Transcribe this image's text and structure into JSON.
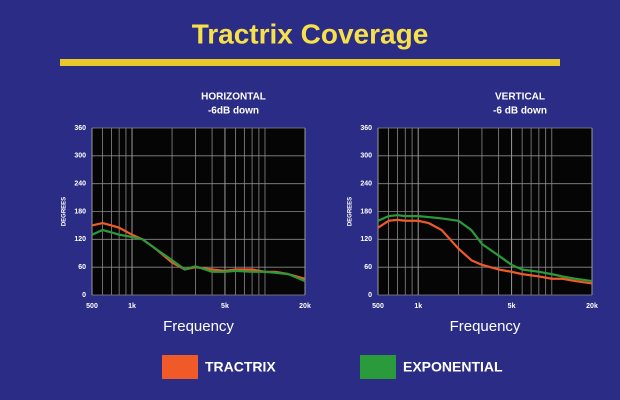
{
  "title": "Tractrix Coverage",
  "chart_data": [
    {
      "type": "line",
      "title": "HORIZONTAL",
      "subtitle": "-6dB down",
      "ylabel": "DEGREES",
      "xlabel": "Frequency",
      "xscale": "log",
      "xlim": [
        500,
        20000
      ],
      "xticks": [
        {
          "value": 500,
          "label": "500"
        },
        {
          "value": 1000,
          "label": "1k"
        },
        {
          "value": 5000,
          "label": "5k"
        },
        {
          "value": 20000,
          "label": "20k"
        }
      ],
      "xminor": [
        600,
        700,
        800,
        900,
        2000,
        3000,
        4000,
        6000,
        7000,
        8000,
        9000,
        10000
      ],
      "ylim": [
        0,
        360
      ],
      "yticks": [
        0,
        60,
        120,
        180,
        240,
        300,
        360
      ],
      "grid": true,
      "x": [
        500,
        600,
        700,
        800,
        1000,
        1200,
        1500,
        2000,
        2500,
        3000,
        4000,
        5000,
        6000,
        8000,
        10000,
        12000,
        15000,
        20000
      ],
      "series": [
        {
          "name": "TRACTRIX",
          "color": "#f05a28",
          "values": [
            150,
            155,
            150,
            145,
            130,
            120,
            100,
            70,
            55,
            60,
            55,
            52,
            55,
            55,
            50,
            50,
            45,
            35
          ]
        },
        {
          "name": "EXPONENTIAL",
          "color": "#2a9a3a",
          "values": [
            130,
            140,
            135,
            130,
            125,
            120,
            100,
            75,
            55,
            62,
            50,
            50,
            52,
            50,
            50,
            48,
            45,
            30
          ]
        }
      ]
    },
    {
      "type": "line",
      "title": "VERTICAL",
      "subtitle": "-6 dB down",
      "ylabel": "DEGREES",
      "xlabel": "Frequency",
      "xscale": "log",
      "xlim": [
        500,
        20000
      ],
      "xticks": [
        {
          "value": 500,
          "label": "500"
        },
        {
          "value": 1000,
          "label": "1k"
        },
        {
          "value": 5000,
          "label": "5k"
        },
        {
          "value": 20000,
          "label": "20k"
        }
      ],
      "xminor": [
        600,
        700,
        800,
        900,
        2000,
        3000,
        4000,
        6000,
        7000,
        8000,
        9000,
        10000
      ],
      "ylim": [
        0,
        360
      ],
      "yticks": [
        0,
        60,
        120,
        180,
        240,
        300,
        360
      ],
      "grid": true,
      "x": [
        500,
        600,
        700,
        800,
        1000,
        1200,
        1500,
        2000,
        2500,
        3000,
        4000,
        5000,
        6000,
        8000,
        10000,
        12000,
        15000,
        20000
      ],
      "series": [
        {
          "name": "TRACTRIX",
          "color": "#f05a28",
          "values": [
            145,
            160,
            162,
            160,
            160,
            155,
            140,
            100,
            75,
            65,
            55,
            50,
            45,
            40,
            35,
            35,
            30,
            25
          ]
        },
        {
          "name": "EXPONENTIAL",
          "color": "#2a9a3a",
          "values": [
            160,
            170,
            172,
            170,
            170,
            168,
            165,
            160,
            140,
            110,
            85,
            65,
            55,
            50,
            45,
            40,
            35,
            30
          ]
        }
      ]
    }
  ]
}
